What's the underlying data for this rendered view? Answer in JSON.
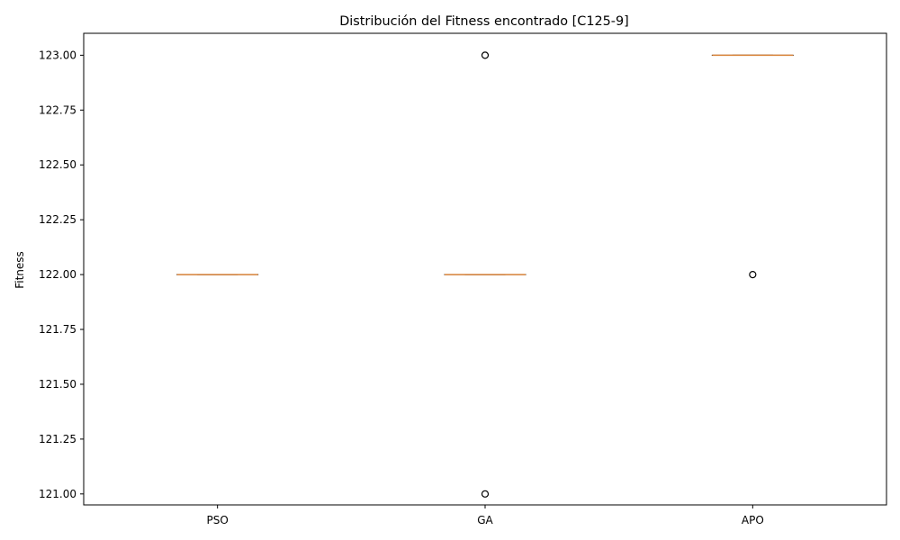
{
  "chart_data": {
    "type": "box",
    "title": "Distribución del Fitness encontrado [C125-9]",
    "xlabel": "",
    "ylabel": "Fitness",
    "categories": [
      "PSO",
      "GA",
      "APO"
    ],
    "ylim": [
      120.95,
      123.1
    ],
    "yticks": [
      121.0,
      121.25,
      121.5,
      121.75,
      122.0,
      122.25,
      122.5,
      122.75,
      123.0
    ],
    "ytick_labels": [
      "121.00",
      "121.25",
      "121.50",
      "121.75",
      "122.00",
      "122.25",
      "122.50",
      "122.75",
      "123.00"
    ],
    "boxes": [
      {
        "category": "PSO",
        "min": 122.0,
        "q1": 122.0,
        "median": 122.0,
        "q3": 122.0,
        "max": 122.0,
        "outliers": []
      },
      {
        "category": "GA",
        "min": 122.0,
        "q1": 122.0,
        "median": 122.0,
        "q3": 122.0,
        "max": 122.0,
        "outliers": [
          121.0,
          123.0
        ]
      },
      {
        "category": "APO",
        "min": 123.0,
        "q1": 123.0,
        "median": 123.0,
        "q3": 123.0,
        "max": 123.0,
        "outliers": [
          122.0
        ]
      }
    ],
    "grid": false,
    "colors": {
      "box": "#000000",
      "median": "#d9853b",
      "outlier": "#000000"
    }
  }
}
